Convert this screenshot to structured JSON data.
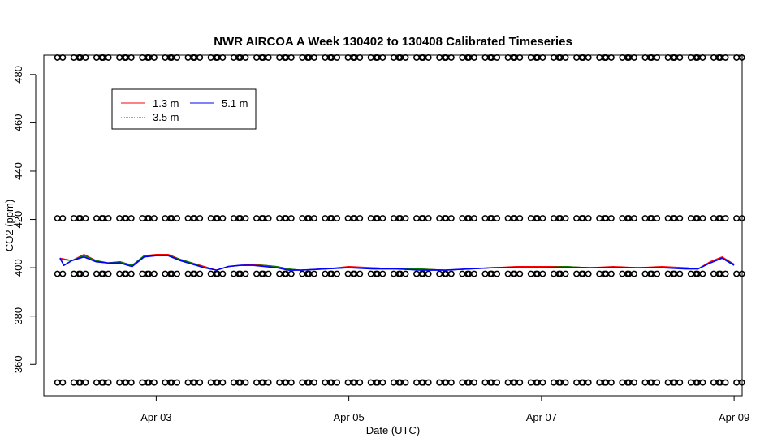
{
  "chart_data": {
    "type": "line",
    "title": "NWR AIRCOA A  Week 130402 to 130408  Calibrated Timeseries",
    "xlabel": "Date (UTC)",
    "ylabel": "CO2 (ppm)",
    "xlim": [
      "2013-04-01T20:00",
      "2013-04-09T02:00"
    ],
    "ylim": [
      347,
      488
    ],
    "x_ticks": [
      {
        "date": "2013-04-03T00:00",
        "label": "Apr 03"
      },
      {
        "date": "2013-04-05T00:00",
        "label": "Apr 05"
      },
      {
        "date": "2013-04-07T00:00",
        "label": "Apr 07"
      },
      {
        "date": "2013-04-09T00:00",
        "label": "Apr 09"
      }
    ],
    "y_ticks": [
      360,
      380,
      400,
      420,
      440,
      460,
      480
    ],
    "grid": false,
    "legend_position": "top-left",
    "series": [
      {
        "name": "1.3 m",
        "color": "#ff0000",
        "points": [
          [
            "2013-04-02T00:00",
            404
          ],
          [
            "2013-04-02T03:00",
            403
          ],
          [
            "2013-04-02T06:00",
            405.5
          ],
          [
            "2013-04-02T09:00",
            403
          ],
          [
            "2013-04-02T12:00",
            402
          ],
          [
            "2013-04-02T15:00",
            402.5
          ],
          [
            "2013-04-02T18:00",
            401
          ],
          [
            "2013-04-02T21:00",
            405
          ],
          [
            "2013-04-03T00:00",
            405.5
          ],
          [
            "2013-04-03T03:00",
            405.5
          ],
          [
            "2013-04-03T06:00",
            403.5
          ],
          [
            "2013-04-03T09:00",
            402
          ],
          [
            "2013-04-03T12:00",
            400.5
          ],
          [
            "2013-04-03T15:00",
            399
          ],
          [
            "2013-04-03T18:00",
            400.5
          ],
          [
            "2013-04-03T21:00",
            401
          ],
          [
            "2013-04-04T00:00",
            401.5
          ],
          [
            "2013-04-04T03:00",
            401
          ],
          [
            "2013-04-04T06:00",
            400.5
          ],
          [
            "2013-04-04T09:00",
            399.5
          ],
          [
            "2013-04-04T12:00",
            399
          ],
          [
            "2013-04-04T18:00",
            399.5
          ],
          [
            "2013-04-05T00:00",
            400.5
          ],
          [
            "2013-04-05T06:00",
            400
          ],
          [
            "2013-04-05T12:00",
            399.5
          ],
          [
            "2013-04-05T18:00",
            399.5
          ],
          [
            "2013-04-06T00:00",
            399
          ],
          [
            "2013-04-06T06:00",
            399.5
          ],
          [
            "2013-04-06T12:00",
            400
          ],
          [
            "2013-04-06T18:00",
            400.5
          ],
          [
            "2013-04-07T00:00",
            400.5
          ],
          [
            "2013-04-07T06:00",
            400.5
          ],
          [
            "2013-04-07T12:00",
            400
          ],
          [
            "2013-04-07T18:00",
            400.5
          ],
          [
            "2013-04-08T00:00",
            400
          ],
          [
            "2013-04-08T06:00",
            400.5
          ],
          [
            "2013-04-08T12:00",
            400
          ],
          [
            "2013-04-08T15:00",
            399.5
          ],
          [
            "2013-04-08T18:00",
            402.5
          ],
          [
            "2013-04-08T21:00",
            404.5
          ],
          [
            "2013-04-09T00:00",
            401.5
          ]
        ]
      },
      {
        "name": "3.5 m",
        "color": "#008000",
        "points": [
          [
            "2013-04-02T00:00",
            403.5
          ],
          [
            "2013-04-02T03:00",
            403
          ],
          [
            "2013-04-02T06:00",
            405
          ],
          [
            "2013-04-02T09:00",
            403
          ],
          [
            "2013-04-02T12:00",
            402
          ],
          [
            "2013-04-02T15:00",
            402.5
          ],
          [
            "2013-04-02T18:00",
            401
          ],
          [
            "2013-04-02T21:00",
            405
          ],
          [
            "2013-04-03T00:00",
            405
          ],
          [
            "2013-04-03T03:00",
            405
          ],
          [
            "2013-04-03T06:00",
            403.5
          ],
          [
            "2013-04-03T09:00",
            402
          ],
          [
            "2013-04-03T12:00",
            400
          ],
          [
            "2013-04-03T15:00",
            399
          ],
          [
            "2013-04-03T18:00",
            400.5
          ],
          [
            "2013-04-03T21:00",
            401
          ],
          [
            "2013-04-04T00:00",
            401
          ],
          [
            "2013-04-04T03:00",
            401
          ],
          [
            "2013-04-04T06:00",
            400.5
          ],
          [
            "2013-04-04T09:00",
            399.5
          ],
          [
            "2013-04-04T12:00",
            399
          ],
          [
            "2013-04-04T18:00",
            399.5
          ],
          [
            "2013-04-05T00:00",
            400
          ],
          [
            "2013-04-05T06:00",
            400
          ],
          [
            "2013-04-05T12:00",
            399.5
          ],
          [
            "2013-04-05T18:00",
            399.5
          ],
          [
            "2013-04-06T00:00",
            399
          ],
          [
            "2013-04-06T06:00",
            399.5
          ],
          [
            "2013-04-06T12:00",
            400
          ],
          [
            "2013-04-06T18:00",
            400
          ],
          [
            "2013-04-07T00:00",
            400
          ],
          [
            "2013-04-07T06:00",
            400.5
          ],
          [
            "2013-04-07T12:00",
            400
          ],
          [
            "2013-04-07T18:00",
            400
          ],
          [
            "2013-04-08T00:00",
            400
          ],
          [
            "2013-04-08T06:00",
            400
          ],
          [
            "2013-04-08T12:00",
            400
          ],
          [
            "2013-04-08T15:00",
            399.5
          ],
          [
            "2013-04-08T18:00",
            402
          ],
          [
            "2013-04-08T21:00",
            404
          ],
          [
            "2013-04-09T00:00",
            401.5
          ]
        ]
      },
      {
        "name": "5.1 m",
        "color": "#0000ff",
        "points": [
          [
            "2013-04-02T00:00",
            404
          ],
          [
            "2013-04-02T01:00",
            401
          ],
          [
            "2013-04-02T03:00",
            403
          ],
          [
            "2013-04-02T06:00",
            404.5
          ],
          [
            "2013-04-02T09:00",
            402.5
          ],
          [
            "2013-04-02T12:00",
            402
          ],
          [
            "2013-04-02T15:00",
            402
          ],
          [
            "2013-04-02T18:00",
            400.5
          ],
          [
            "2013-04-02T21:00",
            404.5
          ],
          [
            "2013-04-03T00:00",
            405
          ],
          [
            "2013-04-03T03:00",
            405
          ],
          [
            "2013-04-03T06:00",
            403
          ],
          [
            "2013-04-03T09:00",
            401.5
          ],
          [
            "2013-04-03T12:00",
            400
          ],
          [
            "2013-04-03T15:00",
            399
          ],
          [
            "2013-04-03T18:00",
            400.5
          ],
          [
            "2013-04-03T21:00",
            401
          ],
          [
            "2013-04-04T00:00",
            401
          ],
          [
            "2013-04-04T03:00",
            400.5
          ],
          [
            "2013-04-04T06:00",
            400
          ],
          [
            "2013-04-04T09:00",
            399
          ],
          [
            "2013-04-04T12:00",
            399
          ],
          [
            "2013-04-04T18:00",
            399.5
          ],
          [
            "2013-04-05T00:00",
            400
          ],
          [
            "2013-04-05T06:00",
            399.5
          ],
          [
            "2013-04-05T12:00",
            399.5
          ],
          [
            "2013-04-05T18:00",
            399
          ],
          [
            "2013-04-06T00:00",
            399
          ],
          [
            "2013-04-06T06:00",
            399.5
          ],
          [
            "2013-04-06T12:00",
            400
          ],
          [
            "2013-04-06T18:00",
            400
          ],
          [
            "2013-04-07T00:00",
            400
          ],
          [
            "2013-04-07T06:00",
            400
          ],
          [
            "2013-04-07T12:00",
            400
          ],
          [
            "2013-04-07T18:00",
            400
          ],
          [
            "2013-04-08T00:00",
            400
          ],
          [
            "2013-04-08T06:00",
            400
          ],
          [
            "2013-04-08T12:00",
            399.5
          ],
          [
            "2013-04-08T15:00",
            399.5
          ],
          [
            "2013-04-08T18:00",
            402
          ],
          [
            "2013-04-08T21:00",
            404
          ],
          [
            "2013-04-09T00:00",
            401
          ]
        ]
      }
    ],
    "marker_rows": [
      {
        "y": 487,
        "count": 60
      },
      {
        "y": 420.5,
        "count": 60
      },
      {
        "y": 397.5,
        "count": 60
      },
      {
        "y": 352.5,
        "count": 60
      }
    ],
    "marker_range": [
      "2013-04-02T00:00",
      "2013-04-09T00:00"
    ]
  }
}
